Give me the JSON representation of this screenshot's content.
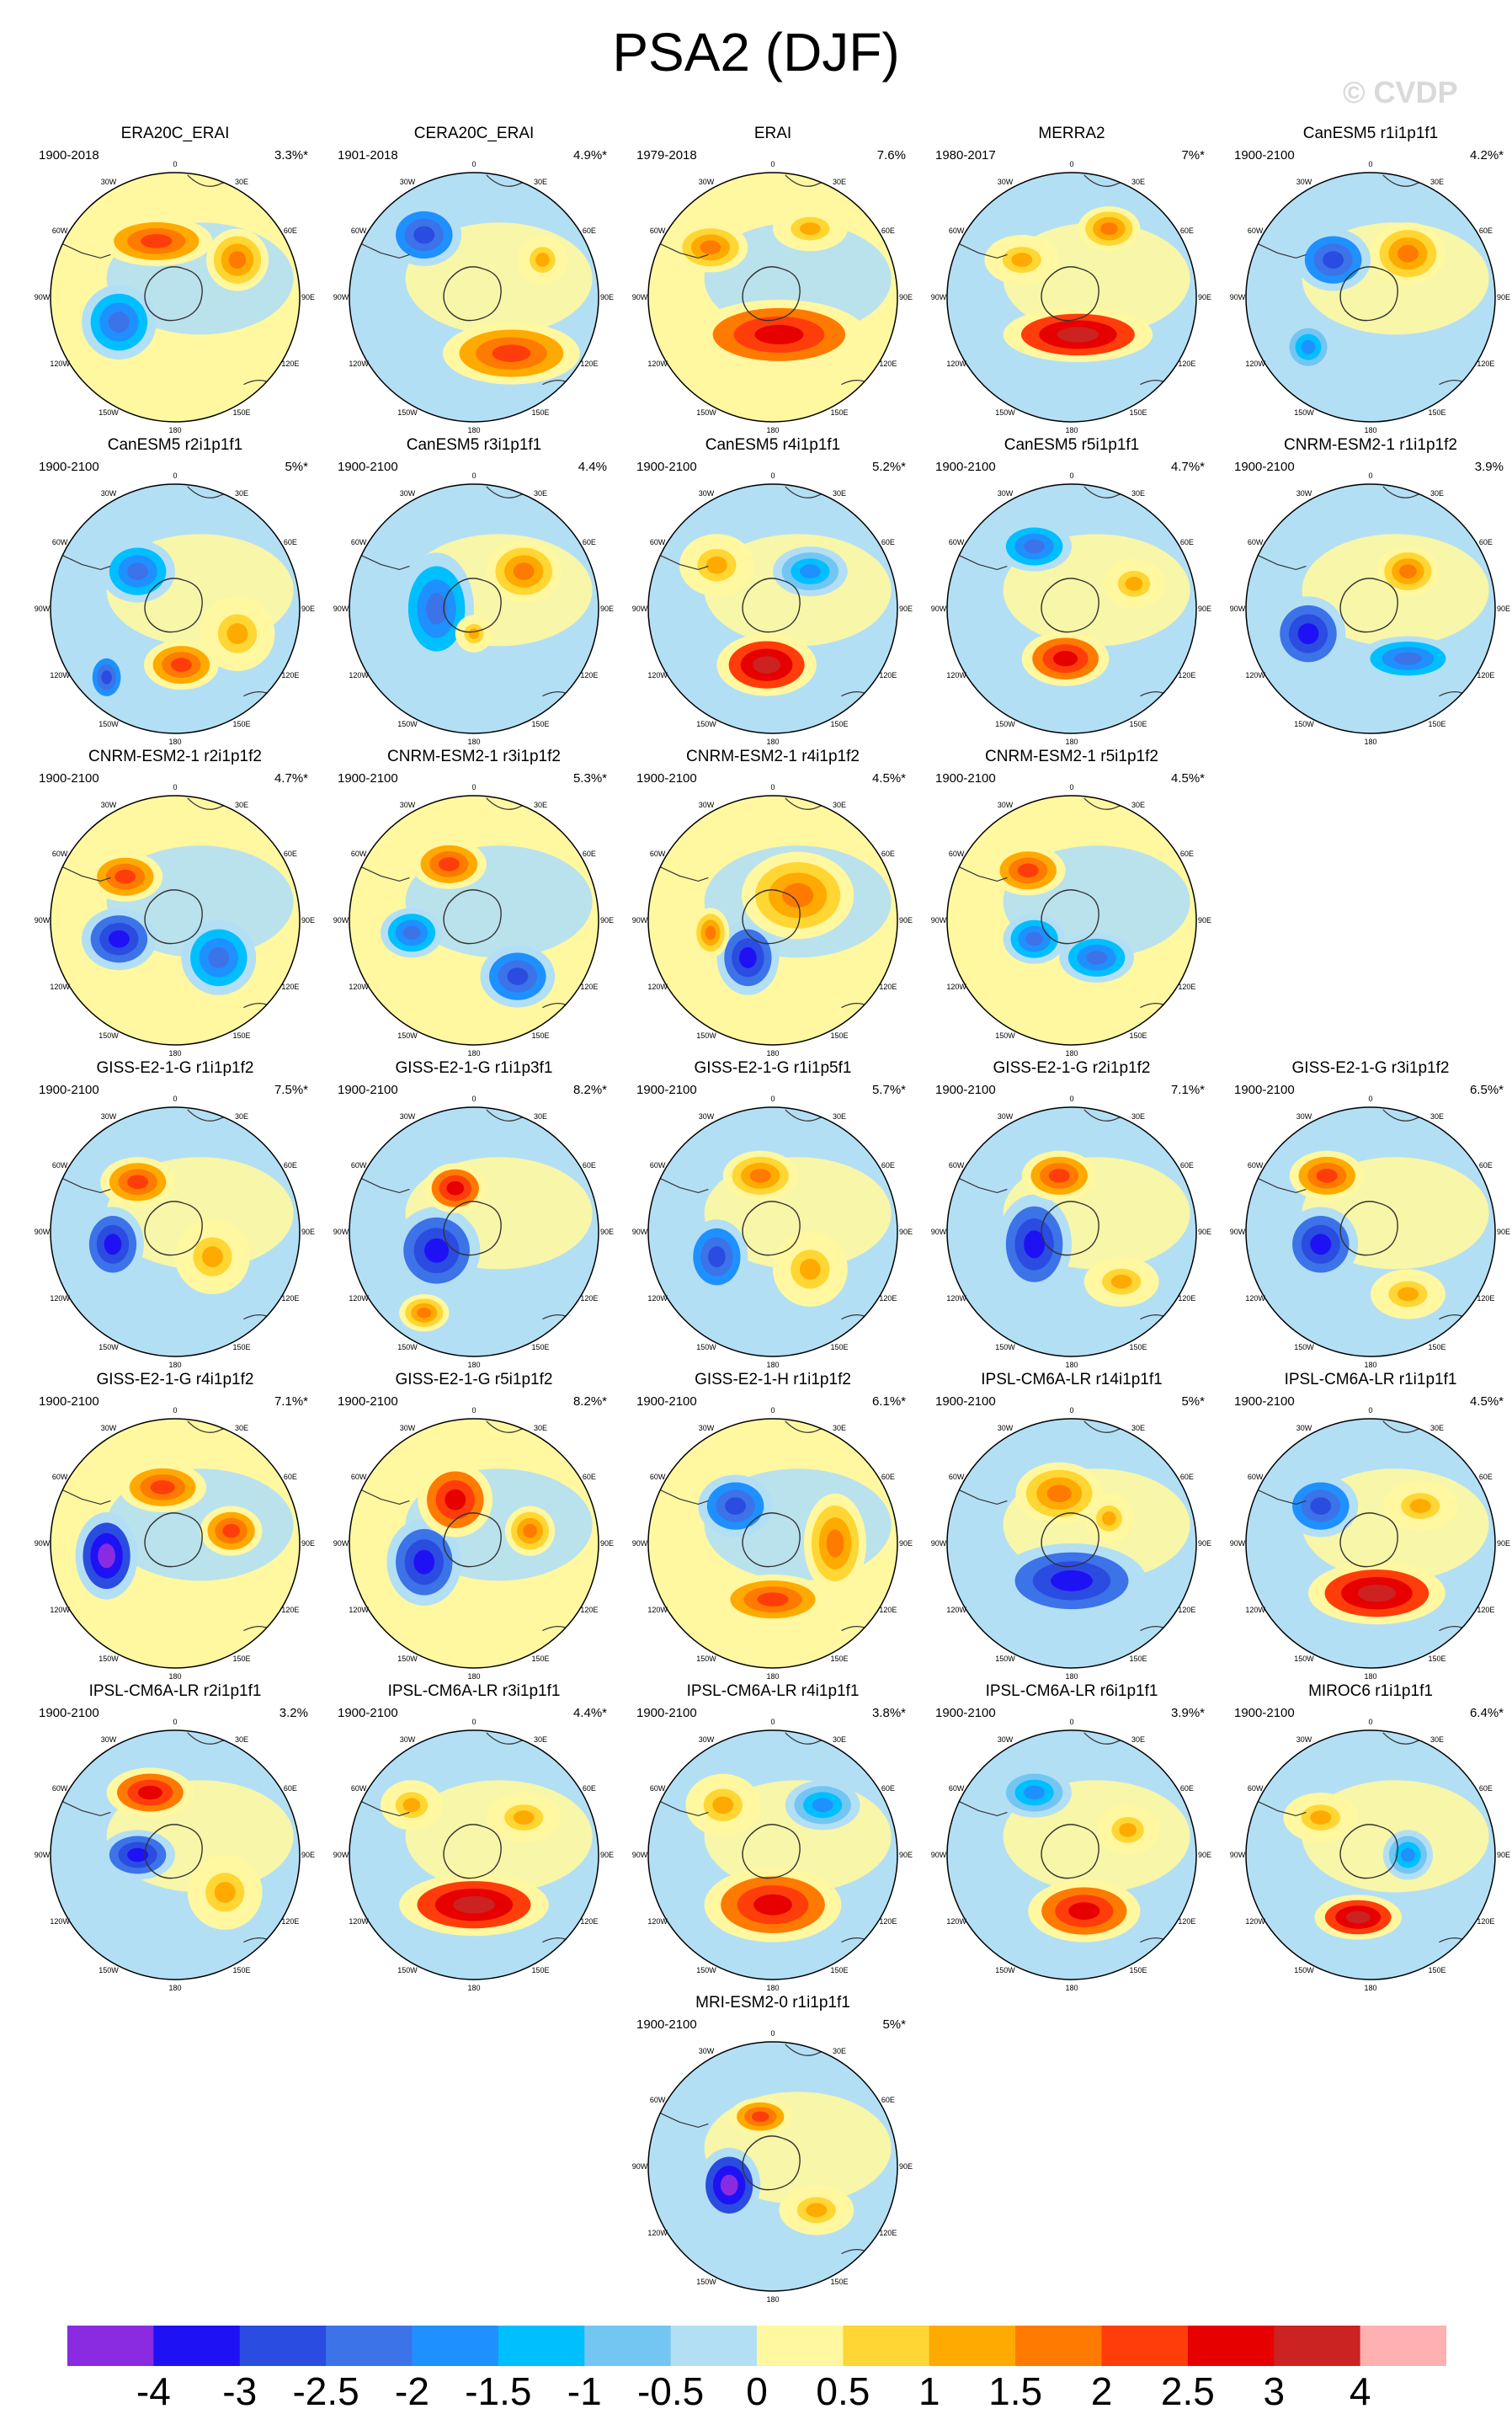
{
  "title": "PSA2 (DJF)",
  "watermark": "© CVDP",
  "map_labels": {
    "lon_top": "0",
    "lon_bottom": "180",
    "lon_30w": "30W",
    "lon_30e": "30E",
    "lon_60w": "60W",
    "lon_60e": "60E",
    "lon_90w": "90W",
    "lon_90e": "90E",
    "lon_120w": "120W",
    "lon_120e": "120E",
    "lon_150w": "150W",
    "lon_150e": "150E"
  },
  "colorbar": {
    "colors": [
      "#8a2be2",
      "#1e12f5",
      "#2b4ce0",
      "#3c73e8",
      "#1e90ff",
      "#00bfff",
      "#73c6f2",
      "#b3dff5",
      "#fff8a0",
      "#ffd633",
      "#ffaa00",
      "#ff7a00",
      "#ff3d0a",
      "#e60000",
      "#cc2222",
      "#ffb0b0"
    ],
    "labels": [
      "-4",
      "-3",
      "-2.5",
      "-2",
      "-1.5",
      "-1",
      "-0.5",
      "0",
      "0.5",
      "1",
      "1.5",
      "2",
      "2.5",
      "3",
      "4"
    ]
  },
  "panels": [
    {
      "title": "ERA20C_ERAI",
      "period": "1900-2018",
      "pct": "3.3%*"
    },
    {
      "title": "CERA20C_ERAI",
      "period": "1901-2018",
      "pct": "4.9%*"
    },
    {
      "title": "ERAI",
      "period": "1979-2018",
      "pct": "7.6%"
    },
    {
      "title": "MERRA2",
      "period": "1980-2017",
      "pct": "7%*"
    },
    {
      "title": "CanESM5 r1i1p1f1",
      "period": "1900-2100",
      "pct": "4.2%*"
    },
    {
      "title": "CanESM5 r2i1p1f1",
      "period": "1900-2100",
      "pct": "5%*"
    },
    {
      "title": "CanESM5 r3i1p1f1",
      "period": "1900-2100",
      "pct": "4.4%"
    },
    {
      "title": "CanESM5 r4i1p1f1",
      "period": "1900-2100",
      "pct": "5.2%*"
    },
    {
      "title": "CanESM5 r5i1p1f1",
      "period": "1900-2100",
      "pct": "4.7%*"
    },
    {
      "title": "CNRM-ESM2-1 r1i1p1f2",
      "period": "1900-2100",
      "pct": "3.9%"
    },
    {
      "title": "CNRM-ESM2-1 r2i1p1f2",
      "period": "1900-2100",
      "pct": "4.7%*"
    },
    {
      "title": "CNRM-ESM2-1 r3i1p1f2",
      "period": "1900-2100",
      "pct": "5.3%*"
    },
    {
      "title": "CNRM-ESM2-1 r4i1p1f2",
      "period": "1900-2100",
      "pct": "4.5%*"
    },
    {
      "title": "CNRM-ESM2-1 r5i1p1f2",
      "period": "1900-2100",
      "pct": "4.5%*"
    },
    {
      "title": "GISS-E2-1-G r1i1p1f2",
      "period": "1900-2100",
      "pct": "7.5%*"
    },
    {
      "title": "GISS-E2-1-G r1i1p3f1",
      "period": "1900-2100",
      "pct": "8.2%*"
    },
    {
      "title": "GISS-E2-1-G r1i1p5f1",
      "period": "1900-2100",
      "pct": "5.7%*"
    },
    {
      "title": "GISS-E2-1-G r2i1p1f2",
      "period": "1900-2100",
      "pct": "7.1%*"
    },
    {
      "title": "GISS-E2-1-G r3i1p1f2",
      "period": "1900-2100",
      "pct": "6.5%*"
    },
    {
      "title": "GISS-E2-1-G r4i1p1f2",
      "period": "1900-2100",
      "pct": "7.1%*"
    },
    {
      "title": "GISS-E2-1-G r5i1p1f2",
      "period": "1900-2100",
      "pct": "8.2%*"
    },
    {
      "title": "GISS-E2-1-H r1i1p1f2",
      "period": "1900-2100",
      "pct": "6.1%*"
    },
    {
      "title": "IPSL-CM6A-LR r14i1p1f1",
      "period": "1900-2100",
      "pct": "5%*"
    },
    {
      "title": "IPSL-CM6A-LR r1i1p1f1",
      "period": "1900-2100",
      "pct": "4.5%*"
    },
    {
      "title": "IPSL-CM6A-LR r2i1p1f1",
      "period": "1900-2100",
      "pct": "3.2%"
    },
    {
      "title": "IPSL-CM6A-LR r3i1p1f1",
      "period": "1900-2100",
      "pct": "4.4%*"
    },
    {
      "title": "IPSL-CM6A-LR r4i1p1f1",
      "period": "1900-2100",
      "pct": "3.8%*"
    },
    {
      "title": "IPSL-CM6A-LR r6i1p1f1",
      "period": "1900-2100",
      "pct": "3.9%*"
    },
    {
      "title": "MIROC6 r1i1p1f1",
      "period": "1900-2100",
      "pct": "6.4%*"
    },
    {
      "title": "MRI-ESM2-0 r1i1p1f1",
      "period": "1900-2100",
      "pct": "5%*"
    }
  ]
}
